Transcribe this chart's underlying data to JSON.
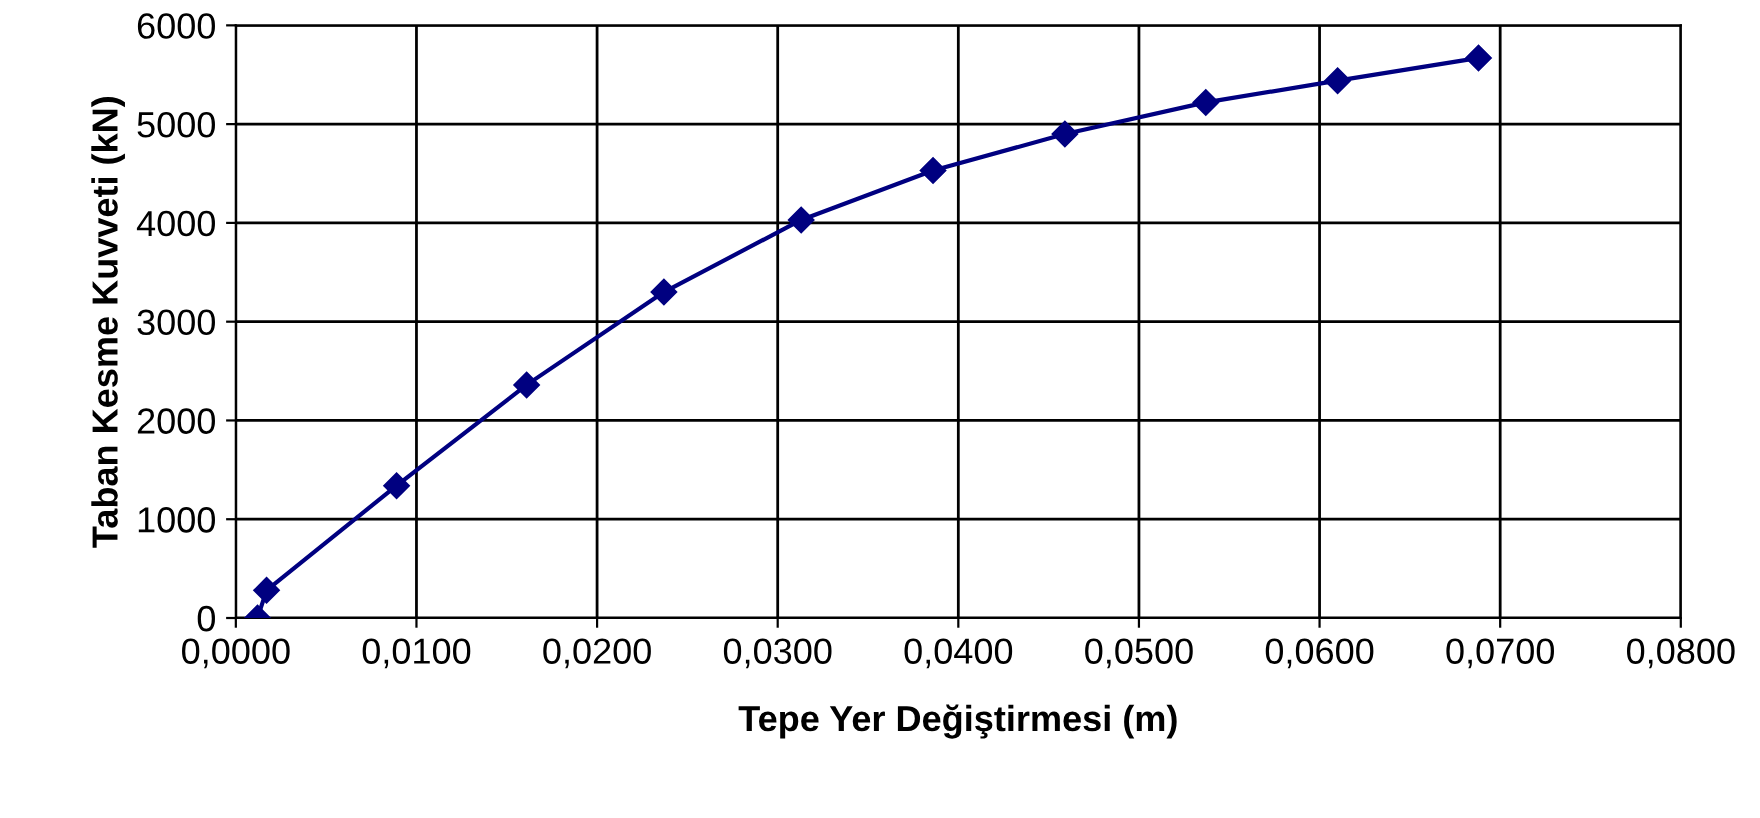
{
  "chart_data": {
    "type": "line",
    "xlabel": "Tepe Yer Değiştirmesi (m)",
    "ylabel": "Taban Kesme Kuvveti (kN)",
    "x": [
      0.0012,
      0.0017,
      0.0089,
      0.0161,
      0.0237,
      0.0313,
      0.0386,
      0.0459,
      0.0537,
      0.061,
      0.0688
    ],
    "series": [
      {
        "color": "#000080",
        "values": [
          0,
          280,
          1340,
          2360,
          3300,
          4030,
          4530,
          4900,
          5220,
          5440,
          5670
        ]
      }
    ],
    "xlim": [
      0,
      0.08
    ],
    "ylim": [
      0,
      6000
    ],
    "xticks": [
      {
        "value": 0,
        "label": "0,0000"
      },
      {
        "value": 0.01,
        "label": "0,0100"
      },
      {
        "value": 0.02,
        "label": "0,0200"
      },
      {
        "value": 0.03,
        "label": "0,0300"
      },
      {
        "value": 0.04,
        "label": "0,0400"
      },
      {
        "value": 0.05,
        "label": "0,0500"
      },
      {
        "value": 0.06,
        "label": "0,0600"
      },
      {
        "value": 0.07,
        "label": "0,0700"
      },
      {
        "value": 0.08,
        "label": "0,0800"
      }
    ],
    "yticks": [
      0,
      1000,
      2000,
      3000,
      4000,
      5000,
      6000
    ],
    "grid": true,
    "marker": "diamond",
    "line_style": "solid",
    "legend": false
  }
}
